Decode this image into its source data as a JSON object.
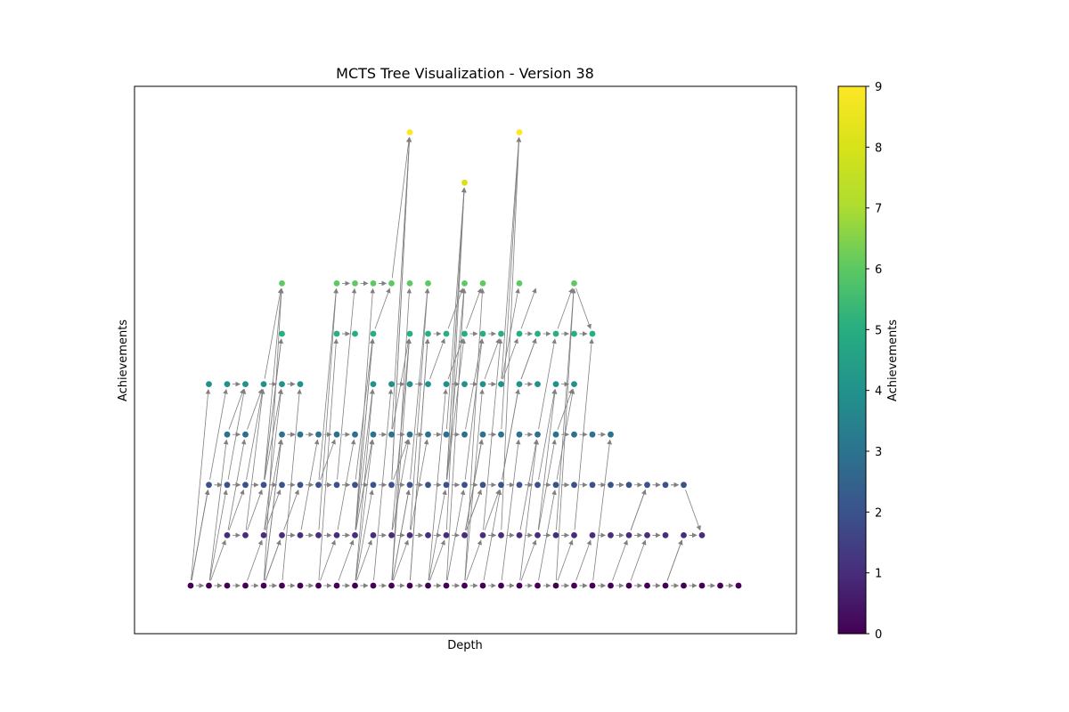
{
  "chart_data": {
    "type": "scatter",
    "title": "MCTS Tree Visualization - Version 38",
    "xlabel": "Depth",
    "ylabel": "Achievements",
    "x_ticks_shown": false,
    "y_ticks_shown": false,
    "grid": false,
    "colormap": "viridis",
    "colorbar": {
      "label": "Achievements",
      "range": [
        0,
        9
      ],
      "ticks": [
        "0",
        "1",
        "2",
        "3",
        "4",
        "5",
        "6",
        "7",
        "8",
        "9"
      ]
    },
    "edge_color": "#808080",
    "levels": [
      {
        "achievements": 0,
        "depth": [
          0,
          1,
          2,
          3,
          4,
          5,
          6,
          7,
          8,
          9,
          10,
          11,
          12,
          13,
          14,
          15,
          16,
          17,
          18,
          19,
          20,
          21,
          22,
          23,
          24,
          25,
          26,
          27,
          28,
          29,
          30
        ]
      },
      {
        "achievements": 1,
        "depth": [
          2,
          3,
          4,
          5,
          6,
          7,
          8,
          9,
          10,
          11,
          12,
          13,
          14,
          15,
          16,
          17,
          18,
          19,
          20,
          21,
          22,
          23,
          24,
          25,
          26,
          27,
          28
        ]
      },
      {
        "achievements": 2,
        "depth": [
          1,
          2,
          3,
          4,
          5,
          6,
          7,
          8,
          9,
          10,
          11,
          12,
          13,
          14,
          15,
          16,
          17,
          18,
          19,
          20,
          21,
          22,
          23,
          24,
          25,
          26,
          27
        ]
      },
      {
        "achievements": 3,
        "depth": [
          2,
          3,
          5,
          6,
          7,
          8,
          9,
          10,
          11,
          12,
          13,
          14,
          15,
          16,
          17,
          18,
          19,
          20,
          21,
          22,
          23
        ]
      },
      {
        "achievements": 4,
        "depth": [
          1,
          2,
          3,
          4,
          5,
          6,
          10,
          11,
          12,
          13,
          14,
          15,
          16,
          17,
          18,
          19,
          20,
          21
        ]
      },
      {
        "achievements": 5,
        "depth": [
          5,
          8,
          9,
          10,
          12,
          13,
          14,
          15,
          16,
          17,
          18,
          19,
          20,
          21,
          22
        ]
      },
      {
        "achievements": 6,
        "depth": [
          5,
          8,
          9,
          10,
          11,
          12,
          13,
          15,
          16,
          18,
          21
        ]
      },
      {
        "achievements": 8,
        "depth": [
          15
        ]
      },
      {
        "achievements": 9,
        "depth": [
          12,
          18
        ]
      }
    ]
  }
}
